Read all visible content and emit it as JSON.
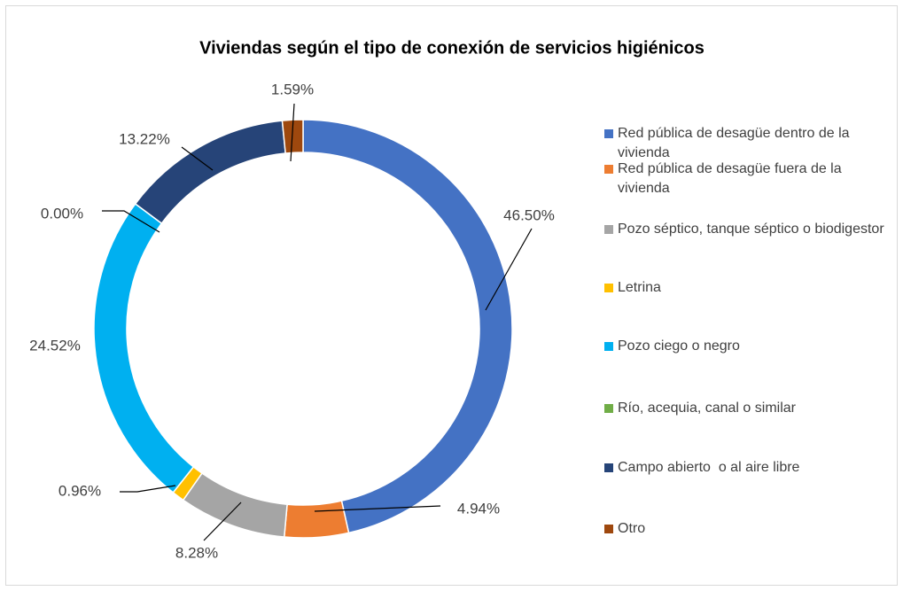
{
  "chart_data": {
    "type": "donut",
    "title": "Viviendas según el tipo de conexión de servicios higiénicos",
    "categories": [
      "Red pública de desagüe dentro de la vivienda",
      "Red pública de desagüe fuera de la vivienda",
      "Pozo séptico, tanque séptico o biodigestor",
      "Letrina",
      "Pozo ciego o negro",
      "Río, acequia, canal o similar",
      "Campo abierto  o al aire libre",
      "Otro"
    ],
    "values": [
      46.5,
      4.94,
      8.28,
      0.96,
      24.52,
      0.0,
      13.22,
      1.59
    ],
    "value_labels": [
      "46.50%",
      "4.94%",
      "8.28%",
      "0.96%",
      "24.52%",
      "0.00%",
      "13.22%",
      "1.59%"
    ],
    "colors": [
      "#4472c4",
      "#ed7d31",
      "#a5a5a5",
      "#ffc000",
      "#00b0f0",
      "#70ad47",
      "#264478",
      "#9e480e"
    ],
    "legend": "right"
  }
}
